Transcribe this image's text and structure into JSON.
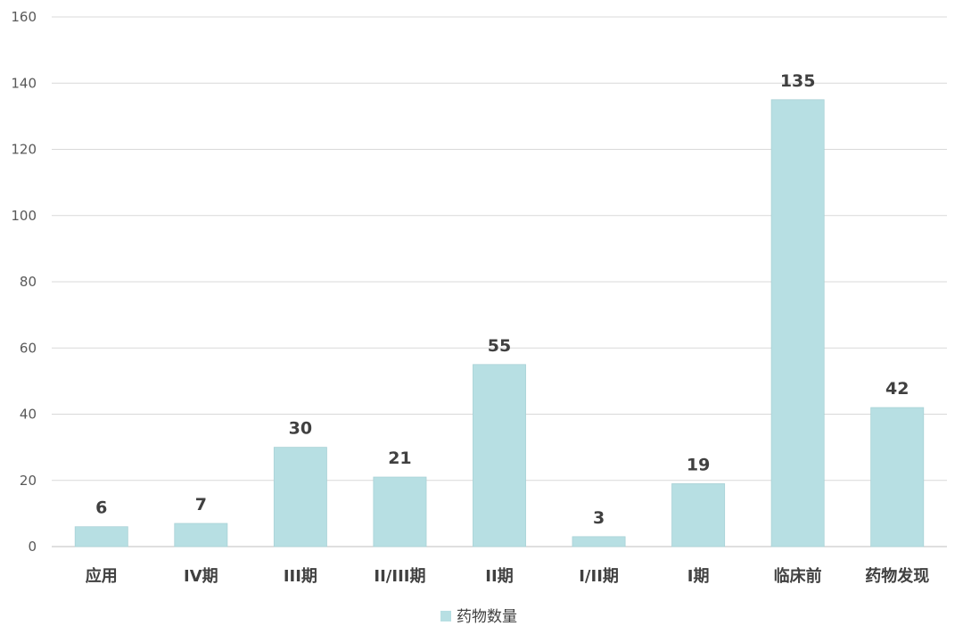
{
  "chart_data": {
    "type": "bar",
    "categories": [
      "应用",
      "IV期",
      "III期",
      "II/III期",
      "II期",
      "I/II期",
      "I期",
      "临床前",
      "药物发现"
    ],
    "series": [
      {
        "name": "药物数量",
        "values": [
          6,
          7,
          30,
          21,
          55,
          3,
          19,
          135,
          42
        ],
        "color": "#b7dfe3"
      }
    ],
    "ylim": [
      0,
      160
    ],
    "yticks": [
      0,
      20,
      40,
      60,
      80,
      100,
      120,
      140,
      160
    ],
    "grid": true,
    "legend": "bottom-center",
    "data_labels": true
  }
}
